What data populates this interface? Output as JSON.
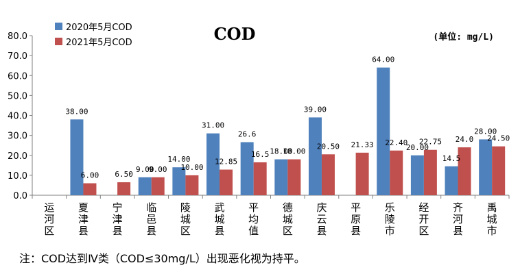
{
  "chart_data": {
    "type": "bar",
    "title": "COD",
    "unit": "(单位: mg/L)",
    "categories": [
      "运河区",
      "夏津县",
      "宁津县",
      "临邑县",
      "陵城区",
      "武城县",
      "平均值",
      "德城区",
      "庆云县",
      "平原县",
      "乐陵市",
      "经开区",
      "齐河县",
      "禹城市"
    ],
    "series": [
      {
        "name": "2020年5月COD",
        "color": "#4f81bd",
        "values": [
          null,
          38.0,
          null,
          9.0,
          14.0,
          31.0,
          26.6,
          18.0,
          39.0,
          null,
          64.0,
          20.0,
          14.5,
          28.0
        ],
        "labels": [
          "",
          "38.00",
          "",
          "9.00",
          "14.00",
          "31.00",
          "26.6",
          "18.00",
          "39.00",
          "",
          "64.00",
          "20.00",
          "14.5",
          "28.00"
        ]
      },
      {
        "name": "2021年5月COD",
        "color": "#c0504d",
        "values": [
          null,
          6.0,
          6.5,
          9.0,
          10.0,
          12.85,
          16.5,
          18.0,
          20.5,
          21.33,
          22.4,
          22.75,
          24.0,
          24.5
        ],
        "labels": [
          "",
          "6.00",
          "6.50",
          "9.00",
          "10.00",
          "12.85",
          "16.5",
          "18.00",
          "20.50",
          "21.33",
          "22.40",
          "22.75",
          "24.0",
          "24.50"
        ]
      }
    ],
    "yticks": [
      "0.0",
      "10.0",
      "20.0",
      "30.0",
      "40.0",
      "50.0",
      "60.0",
      "70.0",
      "80.0"
    ],
    "ylim": [
      0,
      80
    ],
    "legend_position": "top-left",
    "grid": false
  },
  "note": "注：COD达到Ⅳ类（COD≤30mg/L）出现恶化视为持平。"
}
